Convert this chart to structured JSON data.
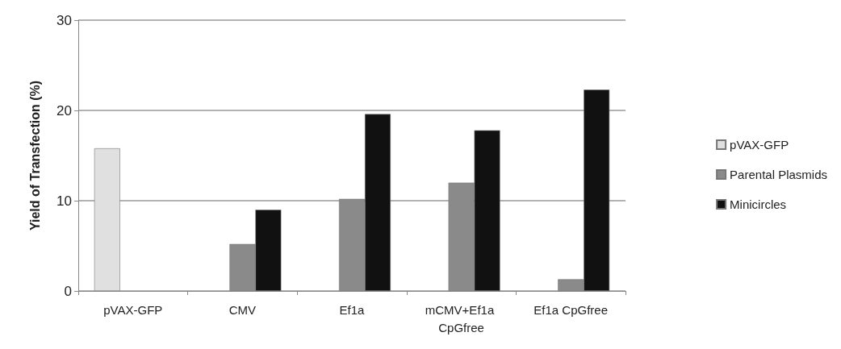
{
  "chart_data": {
    "type": "bar",
    "ylabel": "Yield of Transfection (%)",
    "categories": [
      "pVAX-GFP",
      "CMV",
      "Ef1a",
      "mCMV+Ef1a CpGfree",
      "Ef1a CpGfree"
    ],
    "series": [
      {
        "name": "pVAX-GFP",
        "color": "#e0e0e0",
        "values": [
          15.8,
          null,
          null,
          null,
          null
        ]
      },
      {
        "name": "Parental Plasmids",
        "color": "#8a8a8a",
        "values": [
          null,
          5.2,
          10.2,
          12.0,
          1.3
        ]
      },
      {
        "name": "Minicircles",
        "color": "#111111",
        "values": [
          null,
          9.0,
          19.6,
          17.8,
          22.3
        ]
      }
    ],
    "ylim": [
      0,
      30
    ],
    "yticks": [
      0,
      10,
      20,
      30
    ],
    "grid": "y",
    "legend": "right"
  }
}
